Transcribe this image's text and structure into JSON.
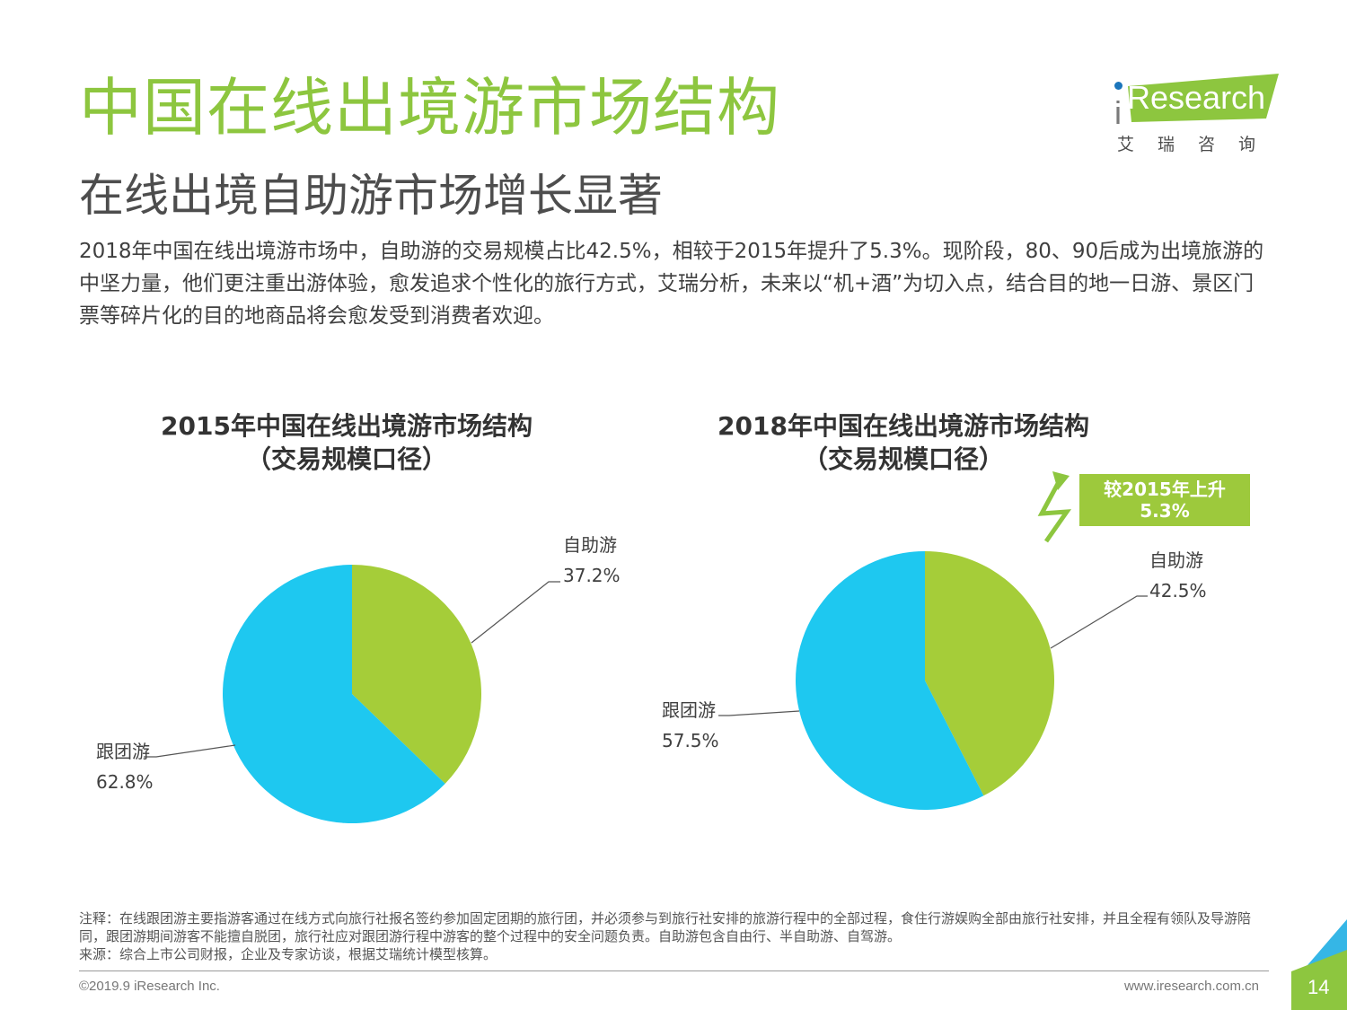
{
  "header": {
    "title": "中国在线出境游市场结构",
    "subtitle": "在线出境自助游市场增长显著",
    "description": "2018年中国在线出境游市场中，自助游的交易规模占比42.5%，相较于2015年提升了5.3%。现阶段，80、90后成为出境旅游的中坚力量，他们更注重出游体验，愈发追求个性化的旅行方式，艾瑞分析，未来以“机+酒”为切入点，结合目的地一日游、景区门票等碎片化的目的地商品将会愈发受到消费者欢迎。"
  },
  "logo": {
    "name": "Research",
    "i_letter": "i",
    "cn": "艾瑞咨询"
  },
  "colors": {
    "title_green": "#8dc63f",
    "self_guided": "#a5cd39",
    "group_tour": "#1ec8f0",
    "badge": "#9dc93c"
  },
  "chart_data": [
    {
      "type": "pie",
      "title": "2015年中国在线出境游市场结构",
      "subtitle": "（交易规模口径）",
      "slices": [
        {
          "name": "自助游",
          "value": 37.2,
          "label": "37.2%",
          "color": "#a5cd39"
        },
        {
          "name": "跟团游",
          "value": 62.8,
          "label": "62.8%",
          "color": "#1ec8f0"
        }
      ]
    },
    {
      "type": "pie",
      "title": "2018年中国在线出境游市场结构",
      "subtitle": "（交易规模口径）",
      "slices": [
        {
          "name": "自助游",
          "value": 42.5,
          "label": "42.5%",
          "color": "#a5cd39"
        },
        {
          "name": "跟团游",
          "value": 57.5,
          "label": "57.5%",
          "color": "#1ec8f0"
        }
      ],
      "annotation": {
        "line1": "较2015年上升",
        "line2": "5.3%"
      }
    }
  ],
  "footer": {
    "note": "注释：在线跟团游主要指游客通过在线方式向旅行社报名签约参加固定团期的旅行团，并必须参与到旅行社安排的旅游行程中的全部过程，食住行游娱购全部由旅行社安排，并且全程有领队及导游陪同，跟团游期间游客不能擅自脱团，旅行社应对跟团游行程中游客的整个过程中的安全问题负责。自助游包含自由行、半自助游、自驾游。",
    "source": "来源：综合上市公司财报，企业及专家访谈，根据艾瑞统计模型核算。",
    "copyright": "©2019.9 iResearch Inc.",
    "website": "www.iresearch.com.cn",
    "page": "14"
  }
}
